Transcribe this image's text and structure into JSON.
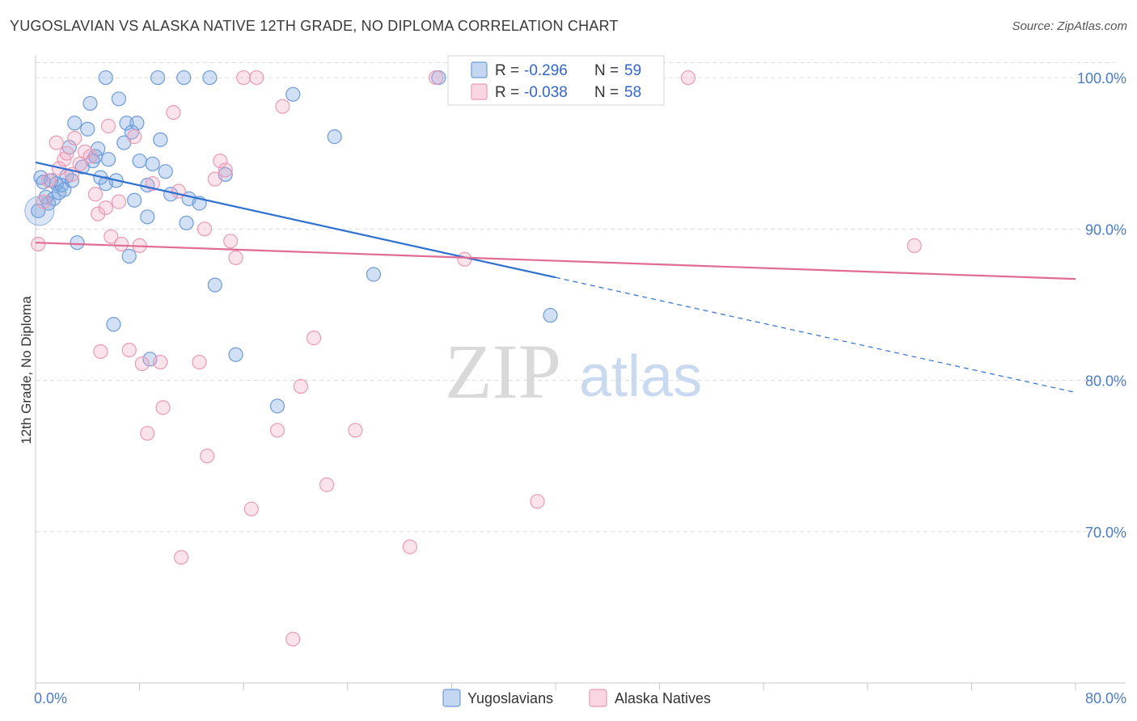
{
  "header": {
    "title": "YUGOSLAVIAN VS ALASKA NATIVE 12TH GRADE, NO DIPLOMA CORRELATION CHART",
    "source": "Source: ZipAtlas.com"
  },
  "watermark": {
    "zip": "ZIP",
    "atlas": "atlas"
  },
  "colors": {
    "yugoslavians": "#7aa6e0",
    "yugoslavians_line": "#2f6fd0",
    "alaska": "#f1a3bd",
    "alaska_line": "#e06c96",
    "grid": "#dddddd",
    "tick": "#4a7cc7"
  },
  "chart_data": {
    "type": "scatter",
    "xlabel": "",
    "ylabel": "12th Grade, No Diploma",
    "xlim": [
      0,
      80
    ],
    "ylim": [
      60,
      101.5
    ],
    "x_tick_labels": [
      {
        "value": 0,
        "label": "0.0%"
      },
      {
        "value": 80,
        "label": "80.0%"
      }
    ],
    "y_tick_labels": [
      {
        "value": 100,
        "label": "100.0%"
      },
      {
        "value": 90,
        "label": "90.0%"
      },
      {
        "value": 80,
        "label": "80.0%"
      },
      {
        "value": 70,
        "label": "70.0%"
      }
    ],
    "legend": {
      "placement": "top-center",
      "entries": [
        {
          "series": "yugoslavians",
          "r_label": "R = ",
          "r_value": "-0.296",
          "n_label": "N = ",
          "n_value": "59"
        },
        {
          "series": "alaska",
          "r_label": "R = ",
          "r_value": "-0.038",
          "n_label": "N = ",
          "n_value": "58"
        }
      ]
    },
    "series": [
      {
        "name": "Yugoslavians",
        "key": "yugoslavians",
        "trend": {
          "x0": 0,
          "y0": 94.4,
          "x1": 40,
          "y1": 86.8,
          "dash_to_x": 80,
          "dash_to_y": 79.2
        },
        "points": [
          [
            0.2,
            91.2
          ],
          [
            0.4,
            93.4
          ],
          [
            0.6,
            93.1
          ],
          [
            0.8,
            92.1
          ],
          [
            1.0,
            91.7
          ],
          [
            1.2,
            93.2
          ],
          [
            1.4,
            92.0
          ],
          [
            1.6,
            93.0
          ],
          [
            1.8,
            92.4
          ],
          [
            2.0,
            92.9
          ],
          [
            2.2,
            92.6
          ],
          [
            2.4,
            93.5
          ],
          [
            2.6,
            95.4
          ],
          [
            2.8,
            93.2
          ],
          [
            3.0,
            97.0
          ],
          [
            3.2,
            89.1
          ],
          [
            3.6,
            94.1
          ],
          [
            4.0,
            96.6
          ],
          [
            4.2,
            98.3
          ],
          [
            4.4,
            94.5
          ],
          [
            4.6,
            94.8
          ],
          [
            4.8,
            95.3
          ],
          [
            5.0,
            93.4
          ],
          [
            5.4,
            93.0
          ],
          [
            5.6,
            94.6
          ],
          [
            5.4,
            100.0
          ],
          [
            6.2,
            93.2
          ],
          [
            6.0,
            83.7
          ],
          [
            6.4,
            98.6
          ],
          [
            6.8,
            95.7
          ],
          [
            7.0,
            97.0
          ],
          [
            7.2,
            88.2
          ],
          [
            7.4,
            96.4
          ],
          [
            7.6,
            91.9
          ],
          [
            7.8,
            97.0
          ],
          [
            8.0,
            94.5
          ],
          [
            8.6,
            90.8
          ],
          [
            8.6,
            92.9
          ],
          [
            8.8,
            81.4
          ],
          [
            9.0,
            94.3
          ],
          [
            9.6,
            95.9
          ],
          [
            9.4,
            100.0
          ],
          [
            10.0,
            93.8
          ],
          [
            10.4,
            92.3
          ],
          [
            11.4,
            100.0
          ],
          [
            11.6,
            90.4
          ],
          [
            11.8,
            92.0
          ],
          [
            12.6,
            91.7
          ],
          [
            13.4,
            100.0
          ],
          [
            13.8,
            86.3
          ],
          [
            14.6,
            93.6
          ],
          [
            15.4,
            81.7
          ],
          [
            18.6,
            78.3
          ],
          [
            19.8,
            98.9
          ],
          [
            23.0,
            96.1
          ],
          [
            26.0,
            87.0
          ],
          [
            31.0,
            100.0
          ],
          [
            37.4,
            100.0
          ],
          [
            39.6,
            84.3
          ]
        ]
      },
      {
        "name": "Alaska Natives",
        "key": "alaska",
        "trend": {
          "x0": 0,
          "y0": 89.1,
          "x1": 80,
          "y1": 86.7
        },
        "points": [
          [
            0.2,
            89.0
          ],
          [
            0.6,
            91.8
          ],
          [
            1.0,
            93.2
          ],
          [
            1.6,
            95.7
          ],
          [
            1.8,
            94.0
          ],
          [
            2.2,
            94.6
          ],
          [
            2.4,
            95.0
          ],
          [
            2.8,
            93.6
          ],
          [
            3.0,
            96.0
          ],
          [
            3.4,
            94.3
          ],
          [
            3.8,
            95.1
          ],
          [
            4.2,
            94.8
          ],
          [
            4.6,
            92.3
          ],
          [
            4.8,
            91.0
          ],
          [
            5.0,
            81.9
          ],
          [
            5.4,
            91.4
          ],
          [
            5.6,
            96.8
          ],
          [
            5.8,
            89.5
          ],
          [
            6.4,
            91.8
          ],
          [
            6.6,
            89.0
          ],
          [
            7.2,
            82.0
          ],
          [
            7.6,
            96.1
          ],
          [
            8.0,
            88.9
          ],
          [
            8.2,
            81.1
          ],
          [
            8.6,
            76.5
          ],
          [
            9.0,
            93.0
          ],
          [
            9.6,
            81.2
          ],
          [
            9.8,
            78.2
          ],
          [
            10.6,
            97.7
          ],
          [
            11.0,
            92.5
          ],
          [
            11.2,
            68.3
          ],
          [
            12.6,
            81.2
          ],
          [
            13.0,
            90.0
          ],
          [
            13.2,
            75.0
          ],
          [
            13.8,
            93.3
          ],
          [
            14.2,
            94.5
          ],
          [
            14.6,
            93.9
          ],
          [
            15.0,
            89.2
          ],
          [
            15.4,
            88.1
          ],
          [
            16.0,
            100.0
          ],
          [
            16.6,
            71.5
          ],
          [
            17.0,
            100.0
          ],
          [
            18.6,
            76.7
          ],
          [
            19.0,
            98.1
          ],
          [
            19.8,
            62.9
          ],
          [
            20.4,
            79.6
          ],
          [
            21.4,
            82.8
          ],
          [
            22.4,
            73.1
          ],
          [
            24.6,
            76.7
          ],
          [
            28.8,
            69.0
          ],
          [
            30.8,
            100.0
          ],
          [
            33.0,
            88.0
          ],
          [
            38.6,
            72.0
          ],
          [
            41.6,
            100.0
          ],
          [
            44.6,
            100.0
          ],
          [
            47.6,
            100.0
          ],
          [
            50.2,
            100.0
          ],
          [
            67.6,
            88.9
          ]
        ]
      }
    ]
  },
  "bottom_legend": {
    "yugoslavians": "Yugoslavians",
    "alaska": "Alaska Natives"
  }
}
